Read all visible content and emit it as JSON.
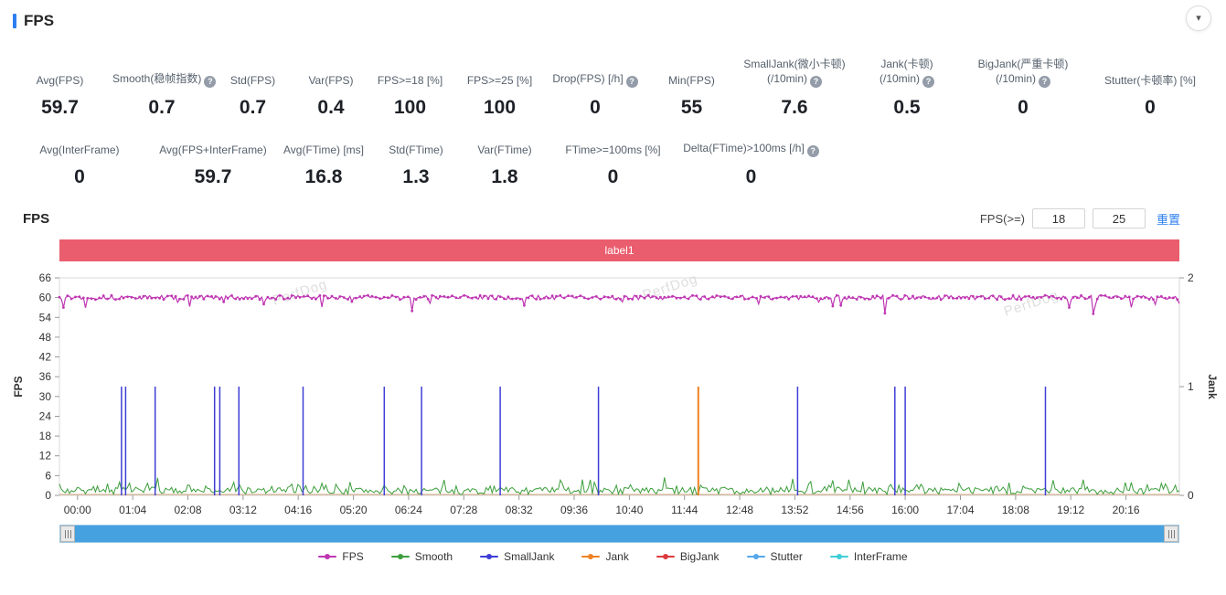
{
  "header": {
    "title": "FPS"
  },
  "stats": {
    "row1": [
      {
        "label": "Avg(FPS)",
        "value": "59.7"
      },
      {
        "label": "Smooth(稳帧指数)",
        "value": "0.7",
        "help": true
      },
      {
        "label": "Std(FPS)",
        "value": "0.7"
      },
      {
        "label": "Var(FPS)",
        "value": "0.4"
      },
      {
        "label": "FPS>=18 [%]",
        "value": "100"
      },
      {
        "label": "FPS>=25 [%]",
        "value": "100"
      },
      {
        "label": "Drop(FPS) [/h]",
        "value": "0",
        "help": true
      },
      {
        "label": "Min(FPS)",
        "value": "55"
      },
      {
        "label": "SmallJank(微小卡顿)",
        "sub": "(/10min)",
        "value": "7.6",
        "help": true
      },
      {
        "label": "Jank(卡顿)",
        "sub": "(/10min)",
        "value": "0.5",
        "help": true
      },
      {
        "label": "BigJank(严重卡顿)",
        "sub": "(/10min)",
        "value": "0",
        "help": true
      },
      {
        "label": "Stutter(卡顿率) [%]",
        "value": "0"
      }
    ],
    "row2": [
      {
        "label": "Avg(InterFrame)",
        "value": "0"
      },
      {
        "label": "Avg(FPS+InterFrame)",
        "value": "59.7"
      },
      {
        "label": "Avg(FTime) [ms]",
        "value": "16.8"
      },
      {
        "label": "Std(FTime)",
        "value": "1.3"
      },
      {
        "label": "Var(FTime)",
        "value": "1.8"
      },
      {
        "label": "FTime>=100ms [%]",
        "value": "0"
      },
      {
        "label": "Delta(FTime)>100ms [/h]",
        "value": "0",
        "help": true
      }
    ]
  },
  "chart_section": {
    "title": "FPS",
    "fps_threshold_label": "FPS(>=)",
    "threshold1": "18",
    "threshold2": "25",
    "reset_label": "重置",
    "banner_label": "label1"
  },
  "chart_data": {
    "type": "line",
    "watermark": "PerfDog",
    "x_ticks": [
      "00:00",
      "01:04",
      "02:08",
      "03:12",
      "04:16",
      "05:20",
      "06:24",
      "07:28",
      "08:32",
      "09:36",
      "10:40",
      "11:44",
      "12:48",
      "13:52",
      "14:56",
      "16:00",
      "17:04",
      "18:08",
      "19:12",
      "20:16"
    ],
    "x_tick_interval_min": 1.0667,
    "x_first_tick_offset_min": 0.35,
    "x_max_minutes": 21.65,
    "left_axis": {
      "label": "FPS",
      "range": [
        0,
        66
      ],
      "ticks": [
        0,
        6,
        12,
        18,
        24,
        30,
        36,
        42,
        48,
        54,
        60,
        66
      ]
    },
    "right_axis": {
      "label": "Jank",
      "range": [
        0,
        2
      ],
      "ticks": [
        0,
        1,
        2
      ]
    },
    "series_summary": {
      "FPS": {
        "approx_baseline": 60,
        "min": 55,
        "description": "steady ~60 fps with occasional dips to 55-58"
      },
      "Smooth": {
        "approx_range": [
          0,
          6
        ],
        "description": "low spiky trace near 0-6"
      },
      "SmallJank": {
        "spike_times_min": [
          0.85,
          0.93,
          1.5,
          2.65,
          2.75,
          3.12,
          4.36,
          5.93,
          6.65,
          8.17,
          10.07,
          13.92,
          15.8,
          16.0,
          18.71
        ],
        "spike_value_jank": 1
      },
      "Jank": {
        "spike_times_min": [
          12.0
        ],
        "spike_value_jank": 1
      },
      "BigJank": {
        "spike_times_min": []
      },
      "Stutter": {
        "baseline": 0
      },
      "InterFrame": {
        "baseline": 0
      }
    }
  },
  "legend": [
    {
      "label": "FPS",
      "color": "#bf36b3"
    },
    {
      "label": "Smooth",
      "color": "#3c9e3c"
    },
    {
      "label": "SmallJank",
      "color": "#3e3ed6"
    },
    {
      "label": "Jank",
      "color": "#f08223"
    },
    {
      "label": "BigJank",
      "color": "#dc3a3e"
    },
    {
      "label": "Stutter",
      "color": "#57a7ea"
    },
    {
      "label": "InterFrame",
      "color": "#40cfd6"
    }
  ]
}
